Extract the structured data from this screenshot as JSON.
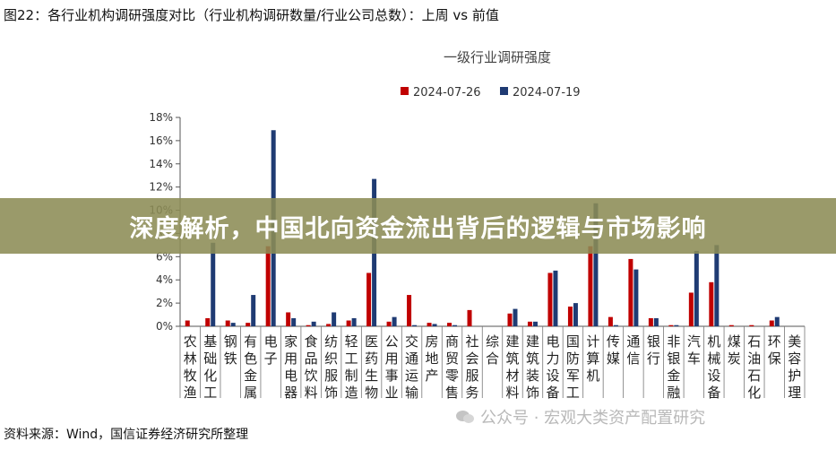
{
  "caption": "图22：各行业机构调研强度对比（行业机构调研数量/行业公司总数）：上周 vs 前值",
  "source": "资料来源：Wind，国信证券经济研究所整理",
  "watermark": "公众号 · 宏观大类资产配置研究",
  "banner": "深度解析，中国北向资金流出背后的逻辑与市场影响",
  "colors": {
    "series1": "#C00000",
    "series2": "#1F3B73"
  },
  "chart_data": {
    "type": "bar",
    "title": "一级行业调研强度",
    "xlabel": "",
    "ylabel": "",
    "ylim": [
      0,
      18
    ],
    "yticks": [
      "0%",
      "2%",
      "4%",
      "6%",
      "8%",
      "10%",
      "12%",
      "14%",
      "16%",
      "18%"
    ],
    "legend_position": "top",
    "grid": false,
    "categories": [
      "农林牧渔",
      "基础化工",
      "钢铁",
      "有色金属",
      "电子",
      "家用电器",
      "食品饮料",
      "纺织服饰",
      "轻工制造",
      "医药生物",
      "公用事业",
      "交通运输",
      "房地产",
      "商贸零售",
      "社会服务",
      "综合",
      "建筑材料",
      "建筑装饰",
      "电力设备",
      "国防军工",
      "计算机",
      "传媒",
      "通信",
      "银行",
      "非银金融",
      "汽车",
      "机械设备",
      "煤炭",
      "石油石化",
      "环保",
      "美容护理"
    ],
    "series": [
      {
        "name": "2024-07-26",
        "values": [
          0.5,
          0.7,
          0.5,
          0.3,
          6.9,
          1.2,
          0.1,
          0.2,
          0.5,
          4.6,
          0.4,
          2.7,
          0.3,
          0.3,
          1.4,
          0.0,
          1.1,
          0.4,
          4.6,
          1.7,
          6.9,
          0.8,
          5.8,
          0.7,
          0.1,
          2.9,
          3.8,
          0.1,
          0.1,
          0.5,
          0.0
        ]
      },
      {
        "name": "2024-07-19",
        "values": [
          0.0,
          7.2,
          0.3,
          2.7,
          16.9,
          0.7,
          0.4,
          1.2,
          0.7,
          12.7,
          0.8,
          0.1,
          0.2,
          0.1,
          0.0,
          0.0,
          1.5,
          0.4,
          4.8,
          2.0,
          10.6,
          0.1,
          4.9,
          0.7,
          0.1,
          6.5,
          7.0,
          0.0,
          0.0,
          0.8,
          0.0
        ]
      }
    ]
  }
}
